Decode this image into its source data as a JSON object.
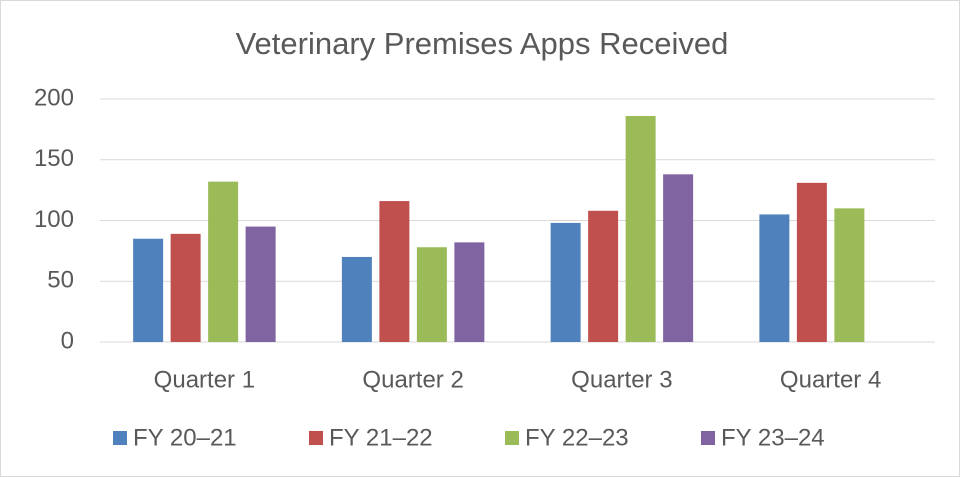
{
  "chart_data": {
    "type": "bar",
    "title": "Veterinary Premises Apps Received",
    "categories": [
      "Quarter 1",
      "Quarter 2",
      "Quarter 3",
      "Quarter 4"
    ],
    "series": [
      {
        "name": "FY 20–21",
        "color": "#4f81bd",
        "values": [
          85,
          70,
          98,
          105
        ]
      },
      {
        "name": "FY 21–22",
        "color": "#c0504d",
        "values": [
          89,
          116,
          108,
          131
        ]
      },
      {
        "name": "FY 22–23",
        "color": "#9bbb59",
        "values": [
          132,
          78,
          186,
          110
        ]
      },
      {
        "name": "FY 23–24",
        "color": "#8064a2",
        "values": [
          95,
          82,
          138,
          null
        ]
      }
    ],
    "ylim": [
      0,
      200
    ],
    "yticks": [
      0,
      50,
      100,
      150,
      200
    ],
    "grid": true,
    "legend": "bottom"
  }
}
